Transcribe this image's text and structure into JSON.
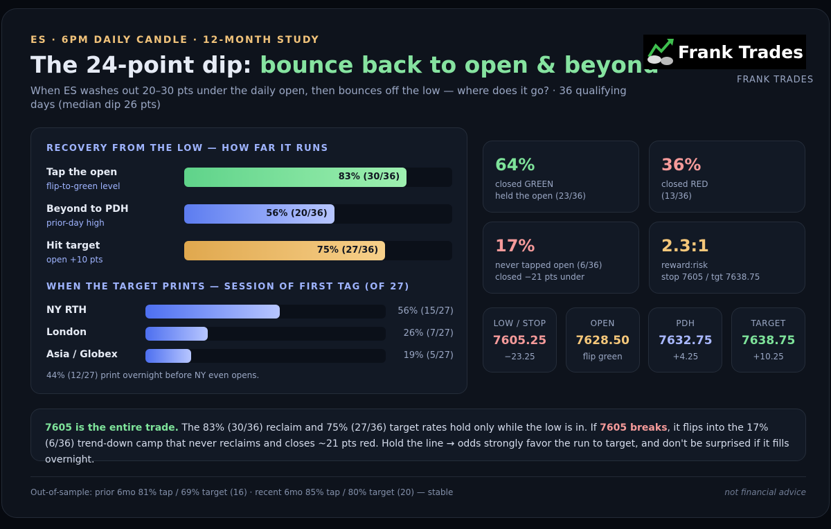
{
  "header": {
    "kicker": "ES · 6PM DAILY CANDLE · 12-MONTH STUDY",
    "title_a": "The 24-point dip:",
    "title_b": "bounce back to open & beyond",
    "subtitle": "When ES washes out 20–30 pts under the daily open, then bounces off the low — where does it go? · 36 qualifying days (median dip 26 pts)",
    "logo": "Frank Trades",
    "brand": "FRANK TRADES"
  },
  "recovery": {
    "title": "RECOVERY FROM THE LOW — HOW FAR IT RUNS",
    "xlim": [
      0,
      100
    ],
    "rows": [
      {
        "name": "Tap the open",
        "sub": "flip-to-green level",
        "value": 83,
        "label": "83% (30/36)",
        "color": "green"
      },
      {
        "name": "Beyond to PDH",
        "sub": "prior-day high",
        "value": 56,
        "label": "56% (20/36)",
        "color": "blue"
      },
      {
        "name": "Hit target",
        "sub": "open +10 pts",
        "value": 75,
        "label": "75% (27/36)",
        "color": "orange"
      }
    ]
  },
  "session": {
    "title": "WHEN THE TARGET PRINTS — SESSION OF FIRST TAG (OF 27)",
    "xlim": [
      0,
      100
    ],
    "rows": [
      {
        "name": "NY RTH",
        "value": 56,
        "label": "56% (15/27)"
      },
      {
        "name": "London",
        "value": 26,
        "label": "26% (7/27)"
      },
      {
        "name": "Asia / Globex",
        "value": 19,
        "label": "19% (5/27)"
      }
    ],
    "note": "44% (12/27) print overnight before NY even opens."
  },
  "stats": [
    {
      "value": "64%",
      "line1": "closed GREEN",
      "line2": "held the open (23/36)",
      "color": "green"
    },
    {
      "value": "36%",
      "line1": "closed RED",
      "line2": "(13/36)",
      "color": "red"
    },
    {
      "value": "17%",
      "line1": "never tapped open (6/36)",
      "line2": "closed −21 pts under",
      "color": "red"
    },
    {
      "value": "2.3:1",
      "line1": "reward:risk",
      "line2": "stop 7605 / tgt 7638.75",
      "color": "orange"
    }
  ],
  "levels": [
    {
      "name": "LOW / STOP",
      "value": "7605.25",
      "delta": "−23.25",
      "color": "red"
    },
    {
      "name": "OPEN",
      "value": "7628.50",
      "delta": "flip green",
      "color": "orange"
    },
    {
      "name": "PDH",
      "value": "7632.75",
      "delta": "+4.25",
      "color": "blue"
    },
    {
      "name": "TARGET",
      "value": "7638.75",
      "delta": "+10.25",
      "color": "green"
    }
  ],
  "callout": {
    "lead": "7605 is the entire trade.",
    "text_a": " The 83% (30/36) reclaim and 75% (27/36) target rates hold only while the low is in. If ",
    "warn": "7605 breaks",
    "text_b": ", it flips into the 17% (6/36) trend-down camp that never reclaims and closes ~21 pts red. Hold the line → odds strongly favor the run to target, and don't be surprised if it fills overnight."
  },
  "footer": {
    "left": "Out-of-sample: prior 6mo 81% tap / 69% target (16) · recent 6mo 85% tap / 80% target (20) — stable",
    "right": "not financial advice"
  }
}
